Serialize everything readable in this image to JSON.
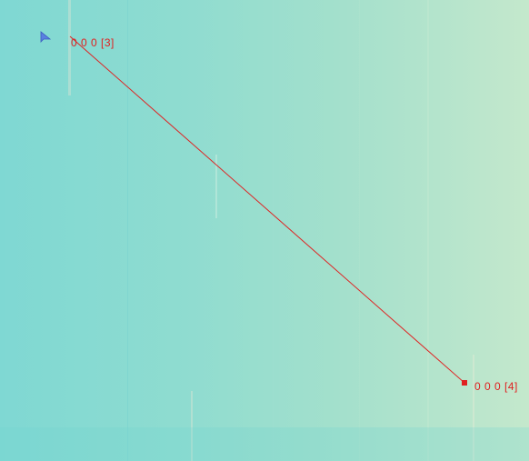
{
  "canvas": {
    "background_colors": [
      "#7fd8d3",
      "#a4e0cc",
      "#c4e8cc"
    ]
  },
  "cursor": {
    "icon": "arrow-pointer-icon",
    "color": "#4a6fd6"
  },
  "measurement": {
    "color": "#e02020",
    "start": {
      "label": "0 0 0  [3]"
    },
    "end": {
      "label": "0 0 0  [4]"
    }
  }
}
